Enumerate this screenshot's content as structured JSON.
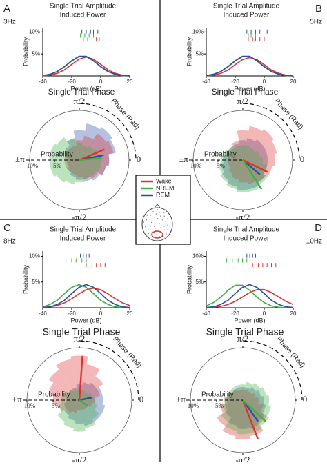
{
  "chart_data": [
    {
      "type": "density",
      "panel": "A",
      "label": "3Hz",
      "title": "Single Trial Amplitude",
      "subtitle": "Induced Power",
      "xlabel": "Power (dB)",
      "ylabel": "Probability",
      "x": [
        -40,
        -35,
        -30,
        -25,
        -20,
        -15,
        -10,
        -5,
        0,
        5,
        10,
        15,
        20
      ],
      "xlim": [
        -40,
        20
      ],
      "xticks": [
        -40,
        -20,
        0,
        20
      ],
      "ylim": [
        0,
        11
      ],
      "yticks": [
        {
          "value": 5,
          "label": "5%"
        },
        {
          "value": 10,
          "label": "10%"
        }
      ],
      "series": [
        {
          "name": "Wake",
          "color": "#e03030",
          "values": [
            0.04,
            0.17,
            0.6,
            1.38,
            2.62,
            3.78,
            4.3,
            3.78,
            2.62,
            1.38,
            0.6,
            0.17,
            0.04
          ],
          "rug": [
            -12,
            -9,
            -6,
            -3,
            -1
          ]
        },
        {
          "name": "NREM",
          "color": "#3cb043",
          "values": [
            0.09,
            0.36,
            0.99,
            2.07,
            3.38,
            4.37,
            4.37,
            3.38,
            2.07,
            0.99,
            0.36,
            0.09,
            0.02
          ],
          "rug": [
            -14,
            -11,
            -8,
            -5
          ]
        },
        {
          "name": "REM",
          "color": "#2b4ea2",
          "values": [
            0.09,
            0.37,
            1.01,
            2.12,
            3.45,
            4.46,
            4.46,
            3.45,
            2.12,
            1.01,
            0.37,
            0.09,
            0.02
          ],
          "rug": [
            -13,
            -10,
            -7,
            -5,
            -2
          ]
        }
      ]
    },
    {
      "type": "polar",
      "title": "Single Trial Phase",
      "rlabel": "Probability",
      "thetalabel": "Phase (Rad)",
      "theta": [
        0,
        0.3927,
        0.7854,
        1.1781,
        1.5708,
        1.9635,
        2.3562,
        2.7489,
        3.1416,
        3.5343,
        3.927,
        4.3197,
        4.7124,
        5.1051,
        5.4978,
        5.8905
      ],
      "thetaticks": [
        {
          "value": 1.5708,
          "label": "π/2"
        },
        {
          "value": 3.1416,
          "label": "±π"
        },
        0,
        {
          "value": -1.5708,
          "label": "-π/2"
        }
      ],
      "rlim": [
        0,
        10
      ],
      "rticks": [
        {
          "value": 5,
          "label": "5%"
        },
        {
          "value": 10,
          "label": "10%"
        }
      ],
      "series": [
        {
          "name": "REM",
          "color": "#2b4ea2",
          "values": [
            6,
            7.5,
            8,
            7.5,
            6,
            4.5,
            3.5,
            3,
            2.5,
            2.5,
            3,
            3.5,
            4,
            4.5,
            5,
            5.5
          ],
          "mean_angle": 0.2,
          "mean_length": 5
        },
        {
          "name": "Wake",
          "color": "#e03030",
          "values": [
            6,
            7,
            6.5,
            5,
            4,
            3,
            3,
            3,
            3,
            3,
            3,
            3,
            3.5,
            4,
            4.5,
            5.5
          ],
          "mean_angle": 0.4,
          "mean_length": 5.5
        },
        {
          "name": "NREM",
          "color": "#3cb043",
          "values": [
            4.5,
            4,
            3.5,
            3,
            3.5,
            4.5,
            5.5,
            6,
            6,
            6,
            5.5,
            5,
            4.5,
            4,
            4,
            4.5
          ],
          "mean_angle": 0.1,
          "mean_length": 4.5
        }
      ]
    },
    {
      "type": "density",
      "panel": "B",
      "label": "5Hz",
      "title": "Single Trial Amplitude",
      "subtitle": "Induced Power",
      "xlabel": "Power (dB)",
      "ylabel": "Probability",
      "x": [
        -40,
        -35,
        -30,
        -25,
        -20,
        -15,
        -10,
        -5,
        0,
        5,
        10,
        15,
        20
      ],
      "xlim": [
        -40,
        20
      ],
      "xticks": [
        -40,
        -20,
        0,
        20
      ],
      "ylim": [
        0,
        11
      ],
      "yticks": [
        {
          "value": 5,
          "label": "5%"
        },
        {
          "value": 10,
          "label": "10%"
        }
      ],
      "series": [
        {
          "name": "Wake",
          "color": "#e03030",
          "values": [
            0.04,
            0.17,
            0.59,
            1.34,
            2.56,
            3.7,
            4.2,
            3.7,
            2.56,
            1.34,
            0.59,
            0.17,
            0.04
          ],
          "rug": [
            -11,
            -8,
            -6,
            -3,
            0
          ]
        },
        {
          "name": "NREM",
          "color": "#3cb043",
          "values": [
            0.09,
            0.36,
            0.99,
            2.07,
            3.38,
            4.37,
            4.37,
            3.38,
            2.07,
            0.99,
            0.36,
            0.09,
            0.02
          ],
          "rug": [
            -14,
            -11,
            -9,
            -6
          ]
        },
        {
          "name": "REM",
          "color": "#2b4ea2",
          "values": [
            0.09,
            0.37,
            1.01,
            2.12,
            3.45,
            4.46,
            4.46,
            3.45,
            2.12,
            1.01,
            0.37,
            0.09,
            0.02
          ],
          "rug": [
            -12,
            -9,
            -6,
            -3,
            2
          ]
        }
      ]
    },
    {
      "type": "polar",
      "title": "Single Trial Phase",
      "rlabel": "Probability",
      "thetalabel": "Phase (Rad)",
      "theta": [
        0,
        0.3927,
        0.7854,
        1.1781,
        1.5708,
        1.9635,
        2.3562,
        2.7489,
        3.1416,
        3.5343,
        3.927,
        4.3197,
        4.7124,
        5.1051,
        5.4978,
        5.8905
      ],
      "thetaticks": [
        {
          "value": 1.5708,
          "label": "π/2"
        },
        {
          "value": 3.1416,
          "label": "±π"
        },
        0,
        {
          "value": -1.5708,
          "label": "-π/2"
        }
      ],
      "rlim": [
        0,
        10
      ],
      "rticks": [
        {
          "value": 5,
          "label": "5%"
        },
        {
          "value": 10,
          "label": "10%"
        }
      ],
      "series": [
        {
          "name": "REM",
          "color": "#2b4ea2",
          "values": [
            5,
            5,
            5,
            4.5,
            4,
            3.5,
            3.5,
            3.5,
            4,
            4.5,
            5,
            5.5,
            6,
            6,
            5.5,
            5
          ],
          "mean_angle": -0.7,
          "mean_length": 4.5
        },
        {
          "name": "Wake",
          "color": "#e03030",
          "values": [
            6.5,
            7,
            7.5,
            7,
            6,
            4,
            3,
            3,
            3,
            3,
            3.5,
            4,
            4.5,
            5,
            5.5,
            6
          ],
          "mean_angle": -0.45,
          "mean_length": 5.5
        },
        {
          "name": "NREM",
          "color": "#3cb043",
          "values": [
            4,
            3.5,
            3,
            3,
            3,
            3,
            3.5,
            4,
            4.5,
            5,
            5.5,
            6,
            6.5,
            6.5,
            6,
            5
          ],
          "mean_angle": -1.0,
          "mean_length": 7
        }
      ]
    },
    {
      "type": "density",
      "panel": "C",
      "label": "8Hz",
      "title": "Single Trial Amplitude",
      "subtitle": "Induced Power",
      "xlabel": "Power (dB)",
      "ylabel": "Probability",
      "x": [
        -40,
        -35,
        -30,
        -25,
        -20,
        -15,
        -10,
        -5,
        0,
        5,
        10,
        15,
        20
      ],
      "xlim": [
        -40,
        20
      ],
      "xticks": [
        -40,
        -20,
        0,
        20
      ],
      "ylim": [
        0,
        11
      ],
      "yticks": [
        {
          "value": 5,
          "label": "5%"
        },
        {
          "value": 10,
          "label": "10%"
        }
      ],
      "series": [
        {
          "name": "Wake",
          "color": "#e03030",
          "values": [
            0.05,
            0.17,
            0.43,
            0.95,
            1.75,
            2.7,
            3.5,
            3.8,
            3.5,
            2.7,
            1.75,
            0.95,
            0.43
          ],
          "rug": [
            -10,
            -6,
            -3,
            0,
            3
          ]
        },
        {
          "name": "NREM",
          "color": "#3cb043",
          "values": [
            0.18,
            0.63,
            1.44,
            2.75,
            3.96,
            4.5,
            3.96,
            2.75,
            1.44,
            0.63,
            0.18,
            0.05,
            0.01
          ],
          "rug": [
            -24,
            -20,
            -17,
            -13,
            -10
          ]
        },
        {
          "name": "REM",
          "color": "#2b4ea2",
          "values": [
            0.05,
            0.18,
            0.63,
            1.44,
            2.75,
            3.96,
            4.5,
            3.96,
            2.75,
            1.44,
            0.63,
            0.18,
            0.05
          ],
          "rug": [
            -14,
            -12,
            -10,
            -8
          ]
        }
      ]
    },
    {
      "type": "polar",
      "title": "Single Trial Phase",
      "rlabel": "Probability",
      "thetalabel": "Phase (Rad)",
      "theta": [
        0,
        0.3927,
        0.7854,
        1.1781,
        1.5708,
        1.9635,
        2.3562,
        2.7489,
        3.1416,
        3.5343,
        3.927,
        4.3197,
        4.7124,
        5.1051,
        5.4978,
        5.8905
      ],
      "thetaticks": [
        {
          "value": 1.5708,
          "label": "π/2"
        },
        {
          "value": 3.1416,
          "label": "±π"
        },
        0,
        {
          "value": -1.5708,
          "label": "-π/2"
        }
      ],
      "rlim": [
        0,
        10
      ],
      "rticks": [
        {
          "value": 5,
          "label": "5%"
        },
        {
          "value": 10,
          "label": "10%"
        }
      ],
      "series": [
        {
          "name": "REM",
          "color": "#2b4ea2",
          "values": [
            4.5,
            4.5,
            4,
            3.5,
            3,
            2.5,
            2.5,
            2.5,
            2.5,
            3,
            3.5,
            4,
            4.5,
            5,
            5,
            5
          ],
          "mean_angle": 0.2,
          "mean_length": 2.5
        },
        {
          "name": "Wake",
          "color": "#e03030",
          "values": [
            3,
            4,
            5.5,
            7,
            8.5,
            8,
            7,
            6,
            5,
            4,
            3,
            2.5,
            2,
            2,
            2,
            2.5
          ],
          "mean_angle": 1.5,
          "mean_length": 8.5
        },
        {
          "name": "NREM",
          "color": "#3cb043",
          "values": [
            3,
            2.5,
            2,
            2,
            2,
            2,
            2.5,
            3,
            3.5,
            4,
            5,
            5.5,
            6,
            5.5,
            4.5,
            3.5
          ],
          "mean_angle": -0.6,
          "mean_length": 2
        }
      ]
    },
    {
      "type": "density",
      "panel": "D",
      "label": "10Hz",
      "title": "Single Trial Amplitude",
      "subtitle": "Induced Power",
      "xlabel": "Power (dB)",
      "ylabel": "Probability",
      "x": [
        -40,
        -35,
        -30,
        -25,
        -20,
        -15,
        -10,
        -5,
        0,
        5,
        10,
        15,
        20
      ],
      "xlim": [
        -40,
        20
      ],
      "xticks": [
        -40,
        -20,
        0,
        20
      ],
      "ylim": [
        0,
        11
      ],
      "yticks": [
        {
          "value": 5,
          "label": "5%"
        },
        {
          "value": 10,
          "label": "10%"
        }
      ],
      "series": [
        {
          "name": "Wake",
          "color": "#e03030",
          "values": [
            0.03,
            0.09,
            0.26,
            0.62,
            1.24,
            2.09,
            2.95,
            3.53,
            3.53,
            2.95,
            2.09,
            1.24,
            0.62
          ],
          "rug": [
            -8,
            -4,
            -1,
            2,
            5,
            8
          ]
        },
        {
          "name": "NREM",
          "color": "#3cb043",
          "values": [
            0.36,
            0.99,
            2.07,
            3.38,
            4.37,
            4.37,
            3.38,
            2.07,
            0.99,
            0.36,
            0.09,
            0.02,
            0
          ],
          "rug": [
            -26,
            -22,
            -18,
            -15,
            -12
          ]
        },
        {
          "name": "REM",
          "color": "#2b4ea2",
          "values": [
            0.05,
            0.18,
            0.63,
            1.44,
            2.75,
            3.96,
            4.5,
            3.96,
            2.75,
            1.44,
            0.63,
            0.18,
            0.05
          ],
          "rug": [
            -12,
            -10,
            -8,
            -6
          ]
        }
      ]
    },
    {
      "type": "polar",
      "title": "Single Trial Phase",
      "rlabel": "Probability",
      "thetalabel": "Phase (Rad)",
      "theta": [
        0,
        0.3927,
        0.7854,
        1.1781,
        1.5708,
        1.9635,
        2.3562,
        2.7489,
        3.1416,
        3.5343,
        3.927,
        4.3197,
        4.7124,
        5.1051,
        5.4978,
        5.8905
      ],
      "thetaticks": [
        {
          "value": 1.5708,
          "label": "π/2"
        },
        {
          "value": 3.1416,
          "label": "±π"
        },
        0,
        {
          "value": -1.5708,
          "label": "-π/2"
        }
      ],
      "rlim": [
        0,
        10
      ],
      "rticks": [
        {
          "value": 5,
          "label": "5%"
        },
        {
          "value": 10,
          "label": "10%"
        }
      ],
      "series": [
        {
          "name": "REM",
          "color": "#2b4ea2",
          "values": [
            4,
            3.5,
            3,
            2.5,
            2.5,
            2.5,
            2.5,
            3,
            3,
            3.5,
            4,
            5,
            5.5,
            5.5,
            5,
            4.5
          ],
          "mean_angle": -0.95,
          "mean_length": 5
        },
        {
          "name": "Wake",
          "color": "#e03030",
          "values": [
            3,
            2.5,
            2,
            2,
            2,
            2,
            2.5,
            3,
            3.5,
            4.5,
            6,
            7,
            7.5,
            7,
            5.5,
            4
          ],
          "mean_angle": -1.2,
          "mean_length": 8
        },
        {
          "name": "NREM",
          "color": "#3cb043",
          "values": [
            5,
            4.5,
            4,
            3.5,
            3,
            3,
            3,
            3,
            3.5,
            4,
            5,
            6,
            6.5,
            6.5,
            6,
            5.5
          ],
          "mean_angle": -0.75,
          "mean_length": 6
        }
      ]
    }
  ]
}
